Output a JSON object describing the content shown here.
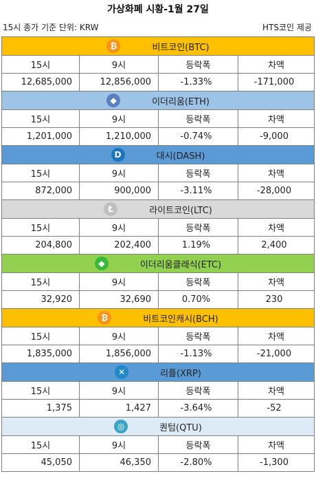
{
  "title": "가상화폐 시황-1월 27일",
  "meta": {
    "left": "15시 종가 기준  단위: KRW",
    "right": "HTS코인 제공"
  },
  "coins": [
    {
      "name": "비트코인(BTC)",
      "bg": "#ffc000",
      "icon": "bitcoin-icon",
      "icon_color": "#f7931a",
      "glyph": "₿",
      "headers": [
        "15시",
        "9시",
        "등락폭",
        "차액"
      ],
      "values": [
        "12,685,000",
        "12,856,000",
        "-1.33%",
        "-171,000"
      ]
    },
    {
      "name": "이더리움(ETH)",
      "bg": "#9dc3e6",
      "icon": "ethereum-icon",
      "icon_color": "#5b7fbf",
      "glyph": "◆",
      "headers": [
        "15시",
        "9시",
        "등락폭",
        "차액"
      ],
      "values": [
        "1,201,000",
        "1,210,000",
        "-0.74%",
        "-9,000"
      ]
    },
    {
      "name": "대시(DASH)",
      "bg": "#5b9bd5",
      "icon": "dash-icon",
      "icon_color": "#1c75bc",
      "glyph": "D",
      "headers": [
        "15시",
        "9시",
        "등락폭",
        "차액"
      ],
      "values": [
        "872,000",
        "900,000",
        "-3.11%",
        "-28,000"
      ]
    },
    {
      "name": "라이트코인(LTC)",
      "bg": "#d9d9d9",
      "icon": "litecoin-icon",
      "icon_color": "#bfbfbf",
      "glyph": "Ł",
      "headers": [
        "15시",
        "9시",
        "등락폭",
        "차액"
      ],
      "values": [
        "204,800",
        "202,400",
        "1.19%",
        "2,400"
      ]
    },
    {
      "name": "이더리움클래식(ETC)",
      "bg": "#92d050",
      "icon": "ethereum-classic-icon",
      "icon_color": "#3ab83a",
      "glyph": "◆",
      "headers": [
        "15시",
        "9시",
        "등락폭",
        "차액"
      ],
      "values": [
        "32,920",
        "32,690",
        "0.70%",
        "230"
      ]
    },
    {
      "name": "비트코인캐시(BCH)",
      "bg": "#ffc000",
      "icon": "bitcoin-cash-icon",
      "icon_color": "#f7931a",
      "glyph": "₿",
      "headers": [
        "15시",
        "9시",
        "등락폭",
        "차액"
      ],
      "values": [
        "1,835,000",
        "1,856,000",
        "-1.13%",
        "-21,000"
      ]
    },
    {
      "name": "리플(XRP)",
      "bg": "#5b9bd5",
      "icon": "ripple-icon",
      "icon_color": "#1e88c8",
      "glyph": "✕",
      "headers": [
        "15시",
        "9시",
        "등락폭",
        "차액"
      ],
      "values": [
        "1,375",
        "1,427",
        "-3.64%",
        "-52"
      ]
    },
    {
      "name": "퀀텀(QTU)",
      "bg": "#ddebf7",
      "icon": "qtum-icon",
      "icon_color": "#3ba3c4",
      "glyph": "◎",
      "headers": [
        "15시",
        "9시",
        "등락폭",
        "차액"
      ],
      "values": [
        "45,050",
        "46,350",
        "-2.80%",
        "-1,300"
      ]
    }
  ]
}
